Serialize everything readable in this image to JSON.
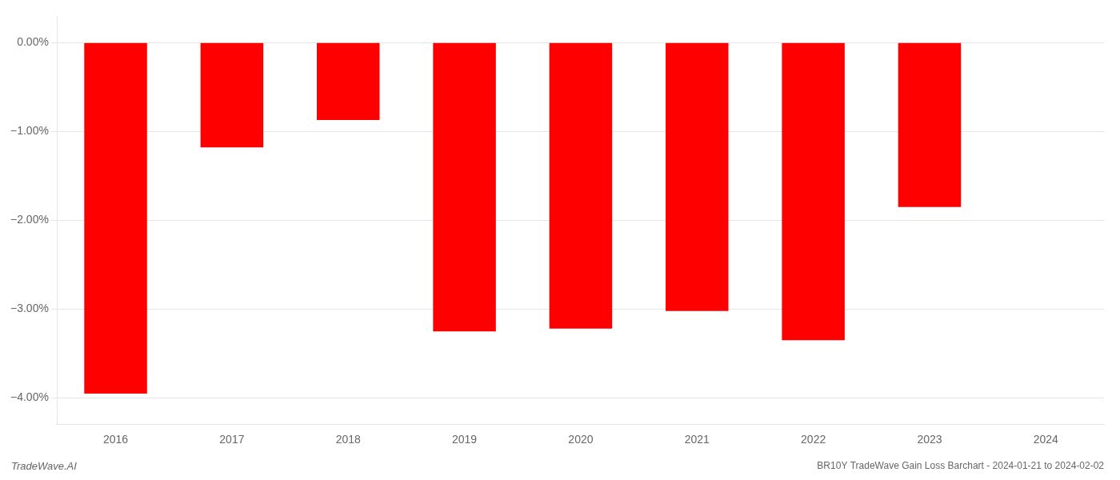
{
  "chart_data": {
    "type": "bar",
    "title": "BR10Y TradeWave Gain Loss Barchart - 2024-01-21 to 2024-02-02",
    "annotations": [
      "TradeWave.AI"
    ],
    "categories": [
      "2016",
      "2017",
      "2018",
      "2019",
      "2020",
      "2021",
      "2022",
      "2023",
      "2024"
    ],
    "values": [
      -3.95,
      -1.18,
      -0.87,
      -3.25,
      -3.22,
      -3.02,
      -3.35,
      -1.85,
      0.0
    ],
    "color": "#ff0000",
    "ylim": [
      -4.3,
      0.3
    ],
    "yticks": [
      {
        "value": 0.0,
        "label": "0.00%"
      },
      {
        "value": -1.0,
        "label": "−1.00%"
      },
      {
        "value": -2.0,
        "label": "−2.00%"
      },
      {
        "value": -3.0,
        "label": "−3.00%"
      },
      {
        "value": -4.0,
        "label": "−4.00%"
      }
    ],
    "grid": true
  }
}
